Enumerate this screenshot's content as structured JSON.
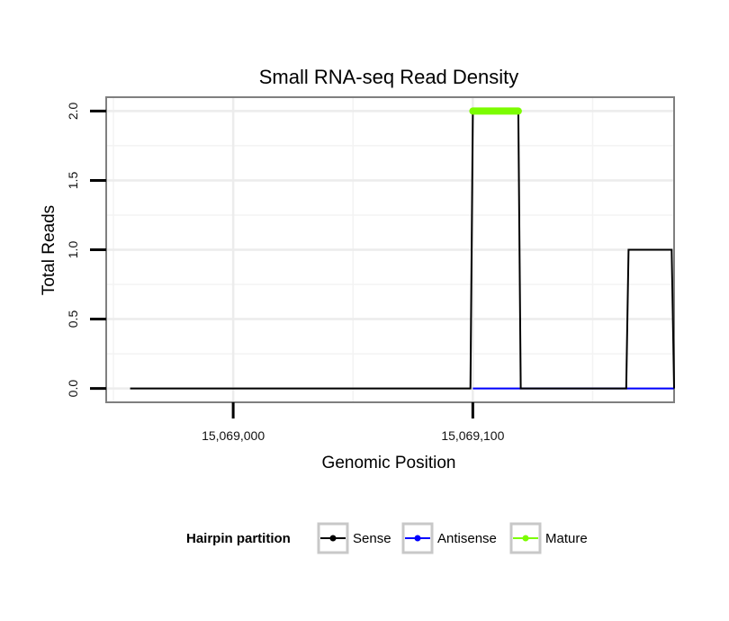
{
  "chart_data": {
    "type": "line",
    "title": "Small RNA-seq Read Density",
    "xlabel": "Genomic Position",
    "ylabel": "Total Reads",
    "xlim": [
      15068947,
      15069184
    ],
    "ylim": [
      -0.1,
      2.1
    ],
    "x_ticks": [
      {
        "value": 15069000,
        "label": "15,069,000"
      },
      {
        "value": 15069100,
        "label": "15,069,100"
      }
    ],
    "y_ticks": [
      {
        "value": 0.0,
        "label": "0.0"
      },
      {
        "value": 0.5,
        "label": "0.5"
      },
      {
        "value": 1.0,
        "label": "1.0"
      },
      {
        "value": 1.5,
        "label": "1.5"
      },
      {
        "value": 2.0,
        "label": "2.0"
      }
    ],
    "grid": true,
    "legend": {
      "title": "Hairpin partition",
      "position": "bottom"
    },
    "series": [
      {
        "name": "Sense",
        "color": "#000000",
        "points": [
          [
            15068957,
            0
          ],
          [
            15069099,
            0
          ],
          [
            15069100,
            2
          ],
          [
            15069119,
            2
          ],
          [
            15069120,
            0
          ],
          [
            15069164,
            0
          ],
          [
            15069165,
            1
          ],
          [
            15069183,
            1
          ],
          [
            15069184,
            0
          ]
        ]
      },
      {
        "name": "Antisense",
        "color": "#0000ff",
        "points": [
          [
            15069100,
            0
          ],
          [
            15069120,
            0
          ],
          [
            15069165,
            0
          ],
          [
            15069184,
            0
          ]
        ]
      },
      {
        "name": "Mature",
        "color": "#7cfc00",
        "points": [
          [
            15069100,
            2
          ],
          [
            15069119,
            2
          ]
        ]
      }
    ]
  }
}
